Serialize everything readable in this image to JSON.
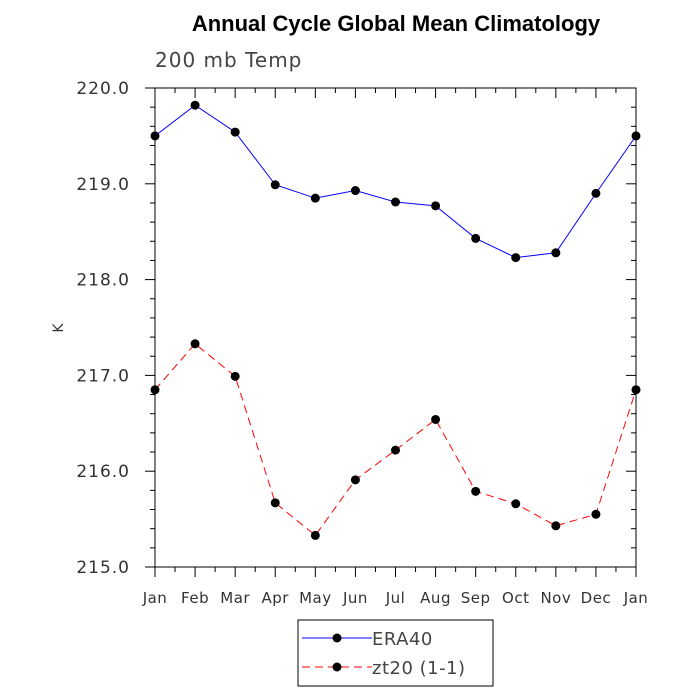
{
  "chart_data": {
    "type": "line",
    "title": "Annual Cycle Global Mean Climatology",
    "subtitle": "200 mb Temp",
    "xlabel": "",
    "ylabel": "K",
    "categories": [
      "Jan",
      "Feb",
      "Mar",
      "Apr",
      "May",
      "Jun",
      "Jul",
      "Aug",
      "Sep",
      "Oct",
      "Nov",
      "Dec",
      "Jan"
    ],
    "ylim": [
      215.0,
      220.0
    ],
    "yticks": [
      "215.0",
      "216.0",
      "217.0",
      "218.0",
      "219.0",
      "220.0"
    ],
    "grid": false,
    "legend_position": "bottom-center",
    "series": [
      {
        "name": "ERA40",
        "color": "#0000ff",
        "dash": "solid",
        "values": [
          219.5,
          219.82,
          219.54,
          218.99,
          218.85,
          218.93,
          218.81,
          218.77,
          218.43,
          218.23,
          218.28,
          218.9,
          219.5
        ]
      },
      {
        "name": "zt20 (1-1)",
        "color": "#ff0000",
        "dash": "dashed",
        "values": [
          216.85,
          217.33,
          216.99,
          215.67,
          215.33,
          215.91,
          216.22,
          216.54,
          215.79,
          215.66,
          215.43,
          215.55,
          216.85
        ]
      }
    ]
  }
}
